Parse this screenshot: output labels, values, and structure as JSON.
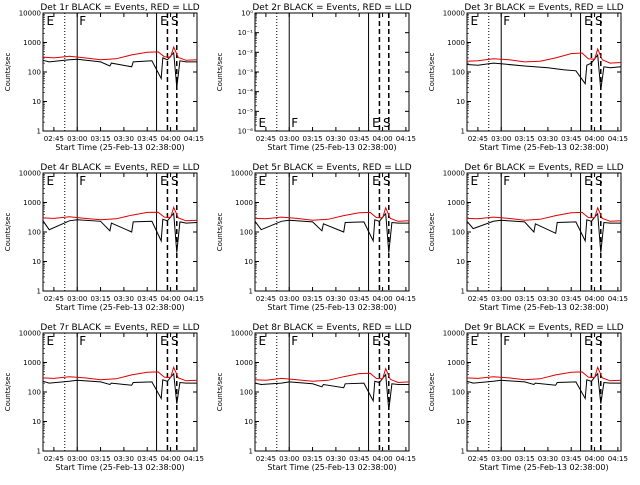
{
  "page": {
    "background": "#ffffff"
  },
  "chart_data": [
    {
      "type": "line",
      "panel": "det-1r",
      "title": "Det 1r BLACK = Events, RED = LLD",
      "xlabel": "Start Time (25-Feb-13 02:38:00)",
      "ylabel": "Counts/sec",
      "x_ticks": [
        "02:45",
        "03:00",
        "03:15",
        "03:30",
        "03:45",
        "04:00",
        "04:15"
      ],
      "xlim": [
        "02:38",
        "04:17"
      ],
      "y_ticks": [
        "1",
        "10",
        "100",
        "1000",
        "10000"
      ],
      "ylim": [
        1,
        10000
      ],
      "y_scale": "log",
      "markers": [
        "E",
        "F",
        "E",
        "S"
      ],
      "series": [
        {
          "color": "#000000",
          "x": [
            "02:38",
            "02:42",
            "02:55",
            "03:00",
            "03:15",
            "03:21",
            "03:22",
            "03:35",
            "03:36",
            "03:48",
            "03:54",
            "03:55",
            "03:58",
            "04:02",
            "04:04",
            "04:06",
            "04:10",
            "04:17"
          ],
          "y": [
            250,
            220,
            260,
            270,
            220,
            160,
            200,
            150,
            220,
            240,
            60,
            300,
            260,
            450,
            30,
            240,
            220,
            220
          ]
        },
        {
          "color": "#e00000",
          "x": [
            "02:38",
            "02:45",
            "02:55",
            "03:05",
            "03:15",
            "03:25",
            "03:35",
            "03:45",
            "03:52",
            "03:56",
            "04:00",
            "04:02",
            "04:05",
            "04:10",
            "04:17"
          ],
          "y": [
            320,
            300,
            340,
            300,
            260,
            280,
            380,
            470,
            480,
            330,
            320,
            700,
            310,
            250,
            260
          ]
        }
      ]
    },
    {
      "type": "line",
      "panel": "det-2r",
      "title": "Det 2r BLACK = Events, RED = LLD",
      "xlabel": "Start Time (25-Feb-13 02:38:00)",
      "ylabel": "Counts/sec",
      "x_ticks": [
        "02:45",
        "03:00",
        "03:15",
        "03:30",
        "03:45",
        "04:00",
        "04:15"
      ],
      "xlim": [
        "02:38",
        "04:17"
      ],
      "y_ticks": [
        "10⁻⁶",
        "10⁻⁵",
        "10⁻⁴",
        "10⁻³",
        "10⁻²",
        "10⁻¹",
        "10⁰"
      ],
      "ylim": [
        1e-06,
        1
      ],
      "y_scale": "log",
      "markers": [
        "E",
        "F",
        "E",
        "S"
      ],
      "series": []
    },
    {
      "type": "line",
      "panel": "det-3r",
      "title": "Det 3r BLACK = Events, RED = LLD",
      "xlabel": "Start Time (25-Feb-13 02:38:00)",
      "ylabel": "Counts/sec",
      "x_ticks": [
        "02:45",
        "03:00",
        "03:15",
        "03:30",
        "03:45",
        "04:00",
        "04:15"
      ],
      "xlim": [
        "02:38",
        "04:17"
      ],
      "y_ticks": [
        "1",
        "10",
        "100",
        "1000",
        "10000"
      ],
      "ylim": [
        1,
        10000
      ],
      "y_scale": "log",
      "markers": [
        "E",
        "F",
        "E",
        "S"
      ],
      "series": [
        {
          "color": "#000000",
          "x": [
            "02:38",
            "02:45",
            "02:55",
            "03:00",
            "03:15",
            "03:30",
            "03:40",
            "03:48",
            "03:54",
            "03:55",
            "03:58",
            "04:02",
            "04:04",
            "04:06",
            "04:10",
            "04:17"
          ],
          "y": [
            180,
            170,
            200,
            190,
            160,
            140,
            120,
            110,
            40,
            170,
            200,
            380,
            25,
            150,
            140,
            150
          ]
        },
        {
          "color": "#e00000",
          "x": [
            "02:38",
            "02:45",
            "02:55",
            "03:05",
            "03:15",
            "03:25",
            "03:35",
            "03:45",
            "03:52",
            "03:56",
            "04:00",
            "04:02",
            "04:05",
            "04:10",
            "04:17"
          ],
          "y": [
            230,
            240,
            280,
            260,
            220,
            230,
            300,
            420,
            440,
            280,
            270,
            600,
            260,
            200,
            210
          ]
        }
      ]
    },
    {
      "type": "line",
      "panel": "det-4r",
      "title": "Det 4r BLACK = Events, RED = LLD",
      "xlabel": "Start Time (25-Feb-13 02:38:00)",
      "ylabel": "Counts/sec",
      "x_ticks": [
        "02:45",
        "03:00",
        "03:15",
        "03:30",
        "03:45",
        "04:00",
        "04:15"
      ],
      "xlim": [
        "02:38",
        "04:17"
      ],
      "y_ticks": [
        "1",
        "10",
        "100",
        "1000",
        "10000"
      ],
      "ylim": [
        1,
        10000
      ],
      "y_scale": "log",
      "markers": [
        "E",
        "F",
        "E",
        "S"
      ],
      "series": [
        {
          "color": "#000000",
          "x": [
            "02:38",
            "02:42",
            "02:55",
            "03:00",
            "03:15",
            "03:21",
            "03:22",
            "03:35",
            "03:36",
            "03:48",
            "03:54",
            "03:55",
            "03:58",
            "04:02",
            "04:04",
            "04:06",
            "04:10",
            "04:17"
          ],
          "y": [
            240,
            120,
            240,
            260,
            230,
            110,
            200,
            100,
            220,
            230,
            50,
            270,
            240,
            430,
            20,
            220,
            200,
            210
          ]
        },
        {
          "color": "#e00000",
          "x": [
            "02:38",
            "02:45",
            "02:55",
            "03:05",
            "03:15",
            "03:25",
            "03:35",
            "03:45",
            "03:52",
            "03:56",
            "04:00",
            "04:02",
            "04:05",
            "04:10",
            "04:17"
          ],
          "y": [
            300,
            290,
            330,
            290,
            260,
            280,
            370,
            460,
            470,
            320,
            310,
            680,
            300,
            240,
            250
          ]
        }
      ]
    },
    {
      "type": "line",
      "panel": "det-5r",
      "title": "Det 5r BLACK = Events, RED = LLD",
      "xlabel": "Start Time (25-Feb-13 02:38:00)",
      "ylabel": "Counts/sec",
      "x_ticks": [
        "02:45",
        "03:00",
        "03:15",
        "03:30",
        "03:45",
        "04:00",
        "04:15"
      ],
      "xlim": [
        "02:38",
        "04:17"
      ],
      "y_ticks": [
        "1",
        "10",
        "100",
        "1000",
        "10000"
      ],
      "ylim": [
        1,
        10000
      ],
      "y_scale": "log",
      "markers": [
        "E",
        "F",
        "E",
        "S"
      ],
      "series": [
        {
          "color": "#000000",
          "x": [
            "02:38",
            "02:42",
            "02:55",
            "03:00",
            "03:15",
            "03:21",
            "03:22",
            "03:35",
            "03:36",
            "03:48",
            "03:54",
            "03:55",
            "03:58",
            "04:02",
            "04:04",
            "04:06",
            "04:10",
            "04:17"
          ],
          "y": [
            230,
            120,
            230,
            250,
            220,
            110,
            190,
            100,
            210,
            220,
            50,
            260,
            230,
            420,
            20,
            210,
            200,
            200
          ]
        },
        {
          "color": "#e00000",
          "x": [
            "02:38",
            "02:45",
            "02:55",
            "03:05",
            "03:15",
            "03:25",
            "03:35",
            "03:45",
            "03:52",
            "03:56",
            "04:00",
            "04:02",
            "04:05",
            "04:10",
            "04:17"
          ],
          "y": [
            290,
            280,
            320,
            290,
            250,
            270,
            360,
            450,
            460,
            310,
            300,
            660,
            290,
            230,
            240
          ]
        }
      ]
    },
    {
      "type": "line",
      "panel": "det-6r",
      "title": "Det 6r BLACK = Events, RED = LLD",
      "xlabel": "Start Time (25-Feb-13 02:38:00)",
      "ylabel": "Counts/sec",
      "x_ticks": [
        "02:45",
        "03:00",
        "03:15",
        "03:30",
        "03:45",
        "04:00",
        "04:15"
      ],
      "xlim": [
        "02:38",
        "04:17"
      ],
      "y_ticks": [
        "1",
        "10",
        "100",
        "1000",
        "10000"
      ],
      "ylim": [
        1,
        10000
      ],
      "y_scale": "log",
      "markers": [
        "E",
        "F",
        "E",
        "S"
      ],
      "series": [
        {
          "color": "#000000",
          "x": [
            "02:38",
            "02:42",
            "02:55",
            "03:00",
            "03:15",
            "03:21",
            "03:22",
            "03:35",
            "03:36",
            "03:48",
            "03:54",
            "03:55",
            "03:58",
            "04:02",
            "04:04",
            "04:06",
            "04:10",
            "04:17"
          ],
          "y": [
            230,
            130,
            230,
            250,
            220,
            100,
            190,
            90,
            210,
            220,
            50,
            260,
            230,
            420,
            20,
            210,
            200,
            200
          ]
        },
        {
          "color": "#e00000",
          "x": [
            "02:38",
            "02:45",
            "02:55",
            "03:05",
            "03:15",
            "03:25",
            "03:35",
            "03:45",
            "03:52",
            "03:56",
            "04:00",
            "04:02",
            "04:05",
            "04:10",
            "04:17"
          ],
          "y": [
            290,
            280,
            320,
            290,
            250,
            270,
            360,
            450,
            460,
            310,
            300,
            660,
            290,
            230,
            240
          ]
        }
      ]
    },
    {
      "type": "line",
      "panel": "det-7r",
      "title": "Det 7r BLACK = Events, RED = LLD",
      "xlabel": "Start Time (25-Feb-13 02:38:00)",
      "ylabel": "Counts/sec",
      "x_ticks": [
        "02:45",
        "03:00",
        "03:15",
        "03:30",
        "03:45",
        "04:00",
        "04:15"
      ],
      "xlim": [
        "02:38",
        "04:17"
      ],
      "y_ticks": [
        "1",
        "10",
        "100",
        "1000",
        "10000"
      ],
      "ylim": [
        1,
        10000
      ],
      "y_scale": "log",
      "markers": [
        "E",
        "F",
        "E",
        "S"
      ],
      "series": [
        {
          "color": "#000000",
          "x": [
            "02:38",
            "02:42",
            "02:55",
            "03:00",
            "03:15",
            "03:21",
            "03:22",
            "03:35",
            "03:36",
            "03:48",
            "03:54",
            "03:55",
            "03:58",
            "04:02",
            "04:04",
            "04:06",
            "04:10",
            "04:17"
          ],
          "y": [
            230,
            200,
            230,
            250,
            220,
            180,
            200,
            170,
            210,
            220,
            60,
            260,
            230,
            420,
            40,
            210,
            200,
            200
          ]
        },
        {
          "color": "#e00000",
          "x": [
            "02:38",
            "02:45",
            "02:55",
            "03:05",
            "03:15",
            "03:25",
            "03:35",
            "03:45",
            "03:52",
            "03:56",
            "04:00",
            "04:02",
            "04:05",
            "04:10",
            "04:17"
          ],
          "y": [
            300,
            290,
            330,
            300,
            260,
            280,
            380,
            470,
            480,
            320,
            310,
            690,
            300,
            240,
            250
          ]
        }
      ]
    },
    {
      "type": "line",
      "panel": "det-8r",
      "title": "Det 8r BLACK = Events, RED = LLD",
      "xlabel": "Start Time (25-Feb-13 02:38:00)",
      "ylabel": "Counts/sec",
      "x_ticks": [
        "02:45",
        "03:00",
        "03:15",
        "03:30",
        "03:45",
        "04:00",
        "04:15"
      ],
      "xlim": [
        "02:38",
        "04:17"
      ],
      "y_ticks": [
        "1",
        "10",
        "100",
        "1000",
        "10000"
      ],
      "ylim": [
        1,
        10000
      ],
      "y_scale": "log",
      "markers": [
        "E",
        "F",
        "E",
        "S"
      ],
      "series": [
        {
          "color": "#000000",
          "x": [
            "02:38",
            "02:42",
            "02:55",
            "03:00",
            "03:15",
            "03:21",
            "03:22",
            "03:35",
            "03:36",
            "03:48",
            "03:54",
            "03:55",
            "03:58",
            "04:02",
            "04:04",
            "04:06",
            "04:10",
            "04:17"
          ],
          "y": [
            200,
            180,
            200,
            220,
            190,
            150,
            180,
            140,
            190,
            200,
            50,
            230,
            210,
            390,
            25,
            190,
            180,
            180
          ]
        },
        {
          "color": "#e00000",
          "x": [
            "02:38",
            "02:45",
            "02:55",
            "03:05",
            "03:15",
            "03:25",
            "03:35",
            "03:45",
            "03:52",
            "03:56",
            "04:00",
            "04:02",
            "04:05",
            "04:10",
            "04:17"
          ],
          "y": [
            260,
            250,
            290,
            260,
            230,
            250,
            330,
            420,
            430,
            290,
            280,
            620,
            270,
            210,
            220
          ]
        }
      ]
    },
    {
      "type": "line",
      "panel": "det-9r",
      "title": "Det 9r BLACK = Events, RED = LLD",
      "xlabel": "Start Time (25-Feb-13 02:38:00)",
      "ylabel": "Counts/sec",
      "x_ticks": [
        "02:45",
        "03:00",
        "03:15",
        "03:30",
        "03:45",
        "04:00",
        "04:15"
      ],
      "xlim": [
        "02:38",
        "04:17"
      ],
      "y_ticks": [
        "1",
        "10",
        "100",
        "1000",
        "10000"
      ],
      "ylim": [
        1,
        10000
      ],
      "y_scale": "log",
      "markers": [
        "E",
        "F",
        "E",
        "S"
      ],
      "series": [
        {
          "color": "#000000",
          "x": [
            "02:38",
            "02:42",
            "02:55",
            "03:00",
            "03:15",
            "03:21",
            "03:22",
            "03:35",
            "03:36",
            "03:48",
            "03:54",
            "03:55",
            "03:58",
            "04:02",
            "04:04",
            "04:06",
            "04:10",
            "04:17"
          ],
          "y": [
            230,
            200,
            230,
            250,
            220,
            180,
            200,
            170,
            210,
            220,
            60,
            260,
            230,
            420,
            40,
            210,
            200,
            200
          ]
        },
        {
          "color": "#e00000",
          "x": [
            "02:38",
            "02:45",
            "02:55",
            "03:05",
            "03:15",
            "03:25",
            "03:35",
            "03:45",
            "03:52",
            "03:56",
            "04:00",
            "04:02",
            "04:05",
            "04:10",
            "04:17"
          ],
          "y": [
            300,
            290,
            330,
            300,
            260,
            280,
            380,
            470,
            480,
            320,
            310,
            690,
            300,
            240,
            250
          ]
        }
      ]
    }
  ]
}
